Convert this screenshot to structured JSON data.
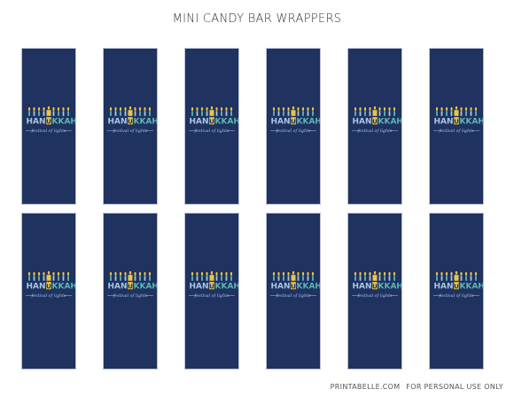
{
  "title": "MINI CANDY BAR WRAPPERS",
  "wrapper": {
    "word_left": "HAN",
    "shamash_letter": "U",
    "word_right": "KKAH",
    "subtitle": "festival of lights"
  },
  "wrapper_count": 12,
  "colors": {
    "navy": "#1f3260",
    "teal": "#5bb8b5",
    "light_blue": "#a8c6e4",
    "yellow": "#e9c64b",
    "flame": "#f2c53d"
  },
  "footer": {
    "brand": "PRINTABELLE.COM",
    "note": "FOR PERSONAL USE ONLY"
  }
}
